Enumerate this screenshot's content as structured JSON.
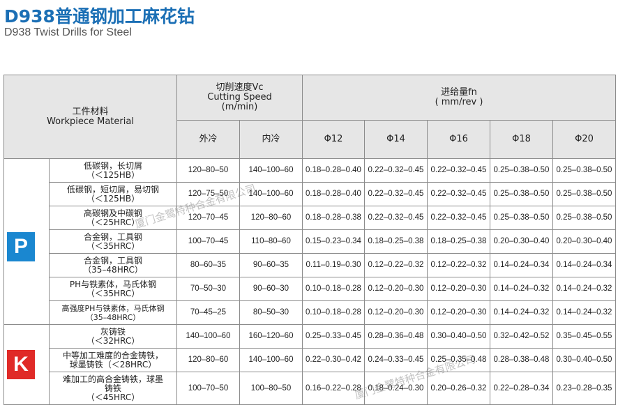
{
  "header": {
    "title": "D938普通钢加工麻花钻",
    "subtitle": "D938 Twist Drills for Steel"
  },
  "table": {
    "headers": {
      "material": [
        "工件材料",
        "Workpiece Material"
      ],
      "cutting_speed": [
        "切削速度Vc",
        "Cutting Speed",
        "(m/min)"
      ],
      "feed": [
        "进给量fn",
        "( mm/rev )"
      ],
      "columns": [
        "外冷",
        "内冷",
        "Φ12",
        "Φ14",
        "Φ16",
        "Φ18",
        "Φ20"
      ]
    },
    "groups": [
      {
        "label": "P",
        "color": "#1a87d0",
        "rows": [
          {
            "material": [
              "低碳钢，长切屑",
              "（＜125HB）"
            ],
            "cells": [
              "120–80–50",
              "140–100–60",
              "0.18–0.28–0.40",
              "0.22–0.32–0.45",
              "0.22–0.32–0.45",
              "0.25–0.38–0.50",
              "0.25–0.38–0.50"
            ]
          },
          {
            "material": [
              "低碳钢，短切屑，易切钢",
              "（＜125HB）"
            ],
            "cells": [
              "120–75–50",
              "140–100–60",
              "0.18–0.28–0.40",
              "0.22–0.32–0.45",
              "0.22–0.32–0.45",
              "0.25–0.38–0.50",
              "0.25–0.38–0.50"
            ]
          },
          {
            "material": [
              "高碳钢及中碳钢",
              "（＜25HRC）"
            ],
            "cells": [
              "120–70–45",
              "120–80–60",
              "0.18–0.28–0.38",
              "0.22–0.32–0.45",
              "0.22–0.32–0.45",
              "0.25–0.38–0.50",
              "0.25–0.38–0.50"
            ]
          },
          {
            "material": [
              "合金钢，工具钢",
              "（＜35HRC）"
            ],
            "cells": [
              "100–70–45",
              "110–80–60",
              "0.15–0.23–0.34",
              "0.18–0.25–0.38",
              "0.18–0.25–0.38",
              "0.20–0.30–0.40",
              "0.20–0.30–0.40"
            ]
          },
          {
            "material": [
              "合金钢，工具钢",
              "（35–48HRC）"
            ],
            "cells": [
              "80–60–35",
              "90–60–35",
              "0.11–0.19–0.30",
              "0.12–0.22–0.32",
              "0.12–0.22–0.32",
              "0.14–0.24–0.34",
              "0.14–0.24–0.34"
            ]
          },
          {
            "material": [
              "PH与铁素体，马氏体钢",
              "（＜35HRC）"
            ],
            "cells": [
              "70–50–30",
              "90–60–30",
              "0.10–0.18–0.28",
              "0.12–0.20–0.30",
              "0.12–0.20–0.30",
              "0.14–0.24–0.32",
              "0.14–0.24–0.32"
            ]
          },
          {
            "material": [
              "高强度PH与铁素体，马氏体钢",
              "（35–48HRC）"
            ],
            "cells": [
              "70–45–25",
              "80–50–30",
              "0.10–0.18–0.28",
              "0.12–0.20–0.30",
              "0.12–0.20–0.30",
              "0.14–0.24–0.32",
              "0.14–0.24–0.32"
            ]
          }
        ]
      },
      {
        "label": "K",
        "color": "#e02a27",
        "rows": [
          {
            "material": [
              "灰铸铁",
              "（＜32HRC）"
            ],
            "cells": [
              "140–100–60",
              "160–120–60",
              "0.25–0.33–0.45",
              "0.28–0.36–0.48",
              "0.30–0.40–0.50",
              "0.32–0.42–0.52",
              "0.35–0.45–0.55"
            ]
          },
          {
            "material": [
              "中等加工难度的合金铸铁，",
              "球墨铸铁（＜28HRC）"
            ],
            "cells": [
              "120–80–60",
              "140–100–60",
              "0.22–0.30–0.42",
              "0.24–0.33–0.45",
              "0.25–0.35–0.48",
              "0.28–0.38–0.48",
              "0.30–0.40–0.50"
            ]
          },
          {
            "material": [
              "难加工的高合金铸铁，球墨",
              "铸铁",
              "（＜45HRC）"
            ],
            "cells": [
              "100–70–50",
              "100–80–50",
              "0.16–0.22–0.28",
              "0.18–0.24–0.30",
              "0.20–0.26–0.32",
              "0.22–0.28–0.34",
              "0.23–0.28–0.35"
            ]
          }
        ]
      }
    ]
  },
  "watermark": [
    "厦门金鹭特种合金有限公司",
    "厦门金鹭特种合金有限公司"
  ]
}
